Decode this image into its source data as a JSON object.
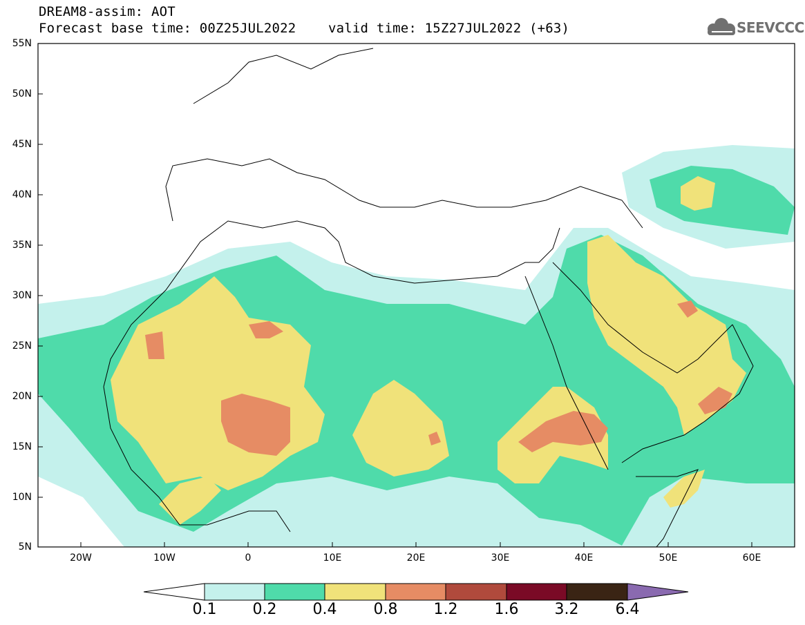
{
  "header": {
    "line1": "DREAM8-assim: AOT",
    "line2": "Forecast base time: 00Z25JUL2022    valid time: 15Z27JUL2022 (+63)",
    "logo_text": "SEEVCCC"
  },
  "map": {
    "lat_labels": [
      "55N",
      "50N",
      "45N",
      "40N",
      "35N",
      "30N",
      "25N",
      "20N",
      "15N",
      "10N",
      "5N"
    ],
    "lon_labels": [
      "20W",
      "10W",
      "0",
      "10E",
      "20E",
      "30E",
      "40E",
      "50E",
      "60E"
    ],
    "extent": {
      "lon_min": -25,
      "lon_max": 65,
      "lat_min": 5,
      "lat_max": 55
    }
  },
  "colorbar": {
    "levels": [
      "0.1",
      "0.2",
      "0.4",
      "0.8",
      "1.2",
      "1.6",
      "3.2",
      "6.4"
    ],
    "colors": [
      "#ffffff",
      "#c4f1ec",
      "#4fdbaa",
      "#f0e27a",
      "#e68c64",
      "#b04a3c",
      "#7a0a26",
      "#3a2414",
      "#8a6ab0"
    ]
  },
  "legend_palette": {
    "c1": "#c4f1ec",
    "c2": "#4fdbaa",
    "c3": "#f0e27a",
    "c4": "#e68c64"
  }
}
